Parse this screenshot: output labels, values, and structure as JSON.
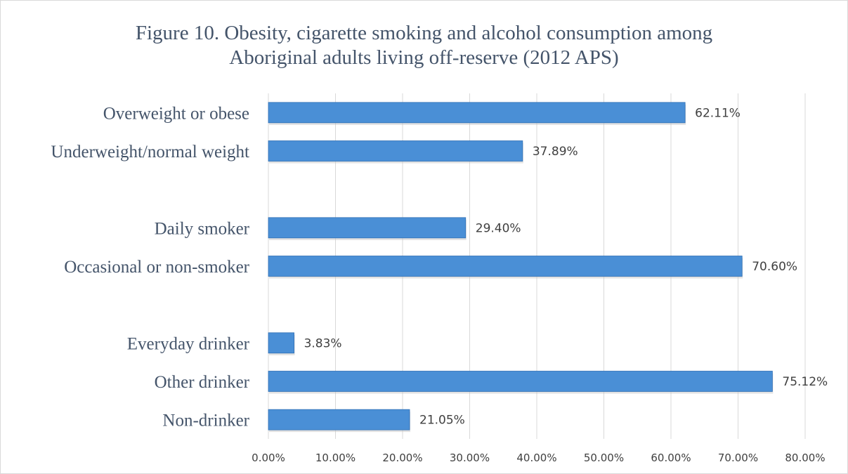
{
  "colors": {
    "bar": "#4a8fd6",
    "bar_edge": "#2f6fb5",
    "grid": "#d9d9d9",
    "title": "#44546a",
    "text": "#404040"
  },
  "chart_data": {
    "type": "bar",
    "orientation": "horizontal",
    "title_lines": [
      "Figure 10. Obesity, cigarette smoking and alcohol consumption among",
      "Aboriginal adults living off-reserve (2012 APS)"
    ],
    "categories": [
      "Overweight or obese",
      "Underweight/normal weight",
      "",
      "Daily smoker",
      "Occasional or non-smoker",
      "",
      "Everyday drinker",
      "Other drinker",
      "Non-drinker"
    ],
    "values": [
      62.11,
      37.89,
      null,
      29.4,
      70.6,
      null,
      3.83,
      75.12,
      21.05
    ],
    "data_labels": [
      "62.11%",
      "37.89%",
      "",
      "29.40%",
      "70.60%",
      "",
      "3.83%",
      "75.12%",
      "21.05%"
    ],
    "xlim": [
      0,
      80
    ],
    "xticks": [
      "0.00%",
      "10.00%",
      "20.00%",
      "30.00%",
      "40.00%",
      "50.00%",
      "60.00%",
      "70.00%",
      "80.00%"
    ],
    "grid": true,
    "legend": "none"
  }
}
